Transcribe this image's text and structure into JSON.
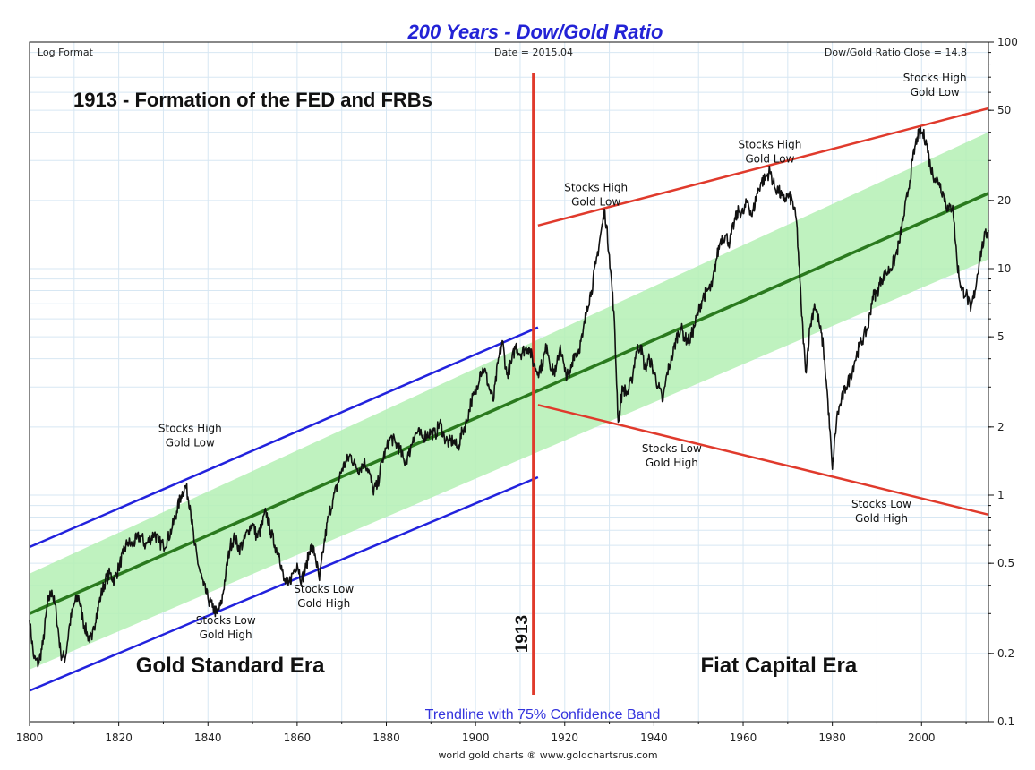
{
  "chart_data": {
    "type": "line",
    "title": "200 Years - Dow/Gold Ratio",
    "header_left": "Log Format",
    "header_center": "Date = 2015.04",
    "header_right": "Dow/Gold Ratio Close = 14.8",
    "headline": "1913 - Formation of the FED and FRBs",
    "footer_label": "Trendline with 75% Confidence Band",
    "credit": "world gold charts ® www.goldchartsrus.com",
    "yscale": "log",
    "xlim": [
      1800,
      2015
    ],
    "ylim": [
      0.1,
      100
    ],
    "x_ticks": [
      "1800",
      "1820",
      "1840",
      "1860",
      "1880",
      "1900",
      "1920",
      "1940",
      "1960",
      "1980",
      "2000"
    ],
    "x_tick_values": [
      1800,
      1820,
      1840,
      1860,
      1880,
      1900,
      1920,
      1940,
      1960,
      1980,
      2000
    ],
    "y_ticks": [
      "0.1",
      "0.2",
      "0.5",
      "1",
      "2",
      "5",
      "10",
      "20",
      "50",
      "100"
    ],
    "y_tick_values": [
      0.1,
      0.2,
      0.5,
      1,
      2,
      5,
      10,
      20,
      50,
      100
    ],
    "divider": {
      "year": 1913,
      "label": "1913"
    },
    "eras": [
      {
        "label": "Gold Standard Era",
        "x": 1845,
        "y": 0.165
      },
      {
        "label": "Fiat Capital Era",
        "x": 1968,
        "y": 0.165
      }
    ],
    "trendline": {
      "start": [
        1800,
        0.3
      ],
      "end": [
        2015,
        21.5
      ]
    },
    "confidence_band": {
      "upper": [
        [
          1800,
          0.45
        ],
        [
          2015,
          40
        ]
      ],
      "lower": [
        [
          1800,
          0.17
        ],
        [
          2015,
          11
        ]
      ]
    },
    "channels": [
      {
        "name": "gold-standard-upper",
        "color": "#2222dd",
        "start": [
          1800,
          0.59
        ],
        "end": [
          1914,
          5.5
        ]
      },
      {
        "name": "gold-standard-lower",
        "color": "#2222dd",
        "start": [
          1800,
          0.137
        ],
        "end": [
          1914,
          1.2
        ]
      },
      {
        "name": "fiat-upper",
        "color": "#e03a2c",
        "start": [
          1914,
          15.5
        ],
        "end": [
          2015,
          51
        ]
      },
      {
        "name": "fiat-lower",
        "color": "#e03a2c",
        "start": [
          1914,
          2.5
        ],
        "end": [
          2015,
          0.82
        ]
      }
    ],
    "annotations": [
      {
        "lines": [
          "Stocks High",
          "Gold Low"
        ],
        "x": 1836,
        "y": 1.9
      },
      {
        "lines": [
          "Stocks Low",
          "Gold High"
        ],
        "x": 1844,
        "y": 0.27
      },
      {
        "lines": [
          "Stocks Low",
          "Gold High"
        ],
        "x": 1866,
        "y": 0.37
      },
      {
        "lines": [
          "Stocks High",
          "Gold Low"
        ],
        "x": 1927,
        "y": 22
      },
      {
        "lines": [
          "Stocks High",
          "Gold Low"
        ],
        "x": 1966,
        "y": 34
      },
      {
        "lines": [
          "Stocks High",
          "Gold Low"
        ],
        "x": 2003,
        "y": 67
      },
      {
        "lines": [
          "Stocks Low",
          "Gold High"
        ],
        "x": 1944,
        "y": 1.55
      },
      {
        "lines": [
          "Stocks Low",
          "Gold High"
        ],
        "x": 1991,
        "y": 0.88
      }
    ],
    "series": [
      {
        "name": "Dow/Gold Ratio",
        "color": "#111111",
        "points": [
          [
            1800,
            0.28
          ],
          [
            1801,
            0.19
          ],
          [
            1802,
            0.18
          ],
          [
            1803,
            0.22
          ],
          [
            1804,
            0.33
          ],
          [
            1805,
            0.38
          ],
          [
            1806,
            0.3
          ],
          [
            1807,
            0.2
          ],
          [
            1808,
            0.19
          ],
          [
            1809,
            0.27
          ],
          [
            1810,
            0.33
          ],
          [
            1811,
            0.36
          ],
          [
            1812,
            0.28
          ],
          [
            1813,
            0.24
          ],
          [
            1814,
            0.23
          ],
          [
            1815,
            0.3
          ],
          [
            1816,
            0.36
          ],
          [
            1817,
            0.42
          ],
          [
            1818,
            0.45
          ],
          [
            1819,
            0.42
          ],
          [
            1820,
            0.48
          ],
          [
            1821,
            0.55
          ],
          [
            1822,
            0.62
          ],
          [
            1823,
            0.6
          ],
          [
            1824,
            0.64
          ],
          [
            1825,
            0.66
          ],
          [
            1826,
            0.6
          ],
          [
            1827,
            0.64
          ],
          [
            1828,
            0.68
          ],
          [
            1829,
            0.62
          ],
          [
            1830,
            0.6
          ],
          [
            1831,
            0.64
          ],
          [
            1832,
            0.72
          ],
          [
            1833,
            0.85
          ],
          [
            1834,
            1.0
          ],
          [
            1835,
            1.1
          ],
          [
            1836,
            0.9
          ],
          [
            1837,
            0.6
          ],
          [
            1838,
            0.48
          ],
          [
            1839,
            0.4
          ],
          [
            1840,
            0.35
          ],
          [
            1841,
            0.32
          ],
          [
            1842,
            0.3
          ],
          [
            1843,
            0.33
          ],
          [
            1844,
            0.45
          ],
          [
            1845,
            0.6
          ],
          [
            1846,
            0.65
          ],
          [
            1847,
            0.58
          ],
          [
            1848,
            0.62
          ],
          [
            1849,
            0.7
          ],
          [
            1850,
            0.75
          ],
          [
            1851,
            0.65
          ],
          [
            1852,
            0.72
          ],
          [
            1853,
            0.85
          ],
          [
            1854,
            0.7
          ],
          [
            1855,
            0.6
          ],
          [
            1856,
            0.55
          ],
          [
            1857,
            0.42
          ],
          [
            1858,
            0.4
          ],
          [
            1859,
            0.45
          ],
          [
            1860,
            0.5
          ],
          [
            1861,
            0.42
          ],
          [
            1862,
            0.48
          ],
          [
            1863,
            0.6
          ],
          [
            1864,
            0.55
          ],
          [
            1865,
            0.42
          ],
          [
            1866,
            0.6
          ],
          [
            1867,
            0.8
          ],
          [
            1868,
            0.95
          ],
          [
            1869,
            1.1
          ],
          [
            1870,
            1.3
          ],
          [
            1871,
            1.4
          ],
          [
            1872,
            1.5
          ],
          [
            1873,
            1.35
          ],
          [
            1874,
            1.3
          ],
          [
            1875,
            1.4
          ],
          [
            1876,
            1.3
          ],
          [
            1877,
            1.05
          ],
          [
            1878,
            1.1
          ],
          [
            1879,
            1.4
          ],
          [
            1880,
            1.6
          ],
          [
            1881,
            1.8
          ],
          [
            1882,
            1.7
          ],
          [
            1883,
            1.6
          ],
          [
            1884,
            1.4
          ],
          [
            1885,
            1.5
          ],
          [
            1886,
            1.8
          ],
          [
            1887,
            1.9
          ],
          [
            1888,
            1.8
          ],
          [
            1889,
            1.85
          ],
          [
            1890,
            1.9
          ],
          [
            1891,
            1.85
          ],
          [
            1892,
            2.1
          ],
          [
            1893,
            1.8
          ],
          [
            1894,
            1.7
          ],
          [
            1895,
            1.75
          ],
          [
            1896,
            1.6
          ],
          [
            1897,
            1.9
          ],
          [
            1898,
            2.1
          ],
          [
            1899,
            2.6
          ],
          [
            1900,
            2.8
          ],
          [
            1901,
            3.5
          ],
          [
            1902,
            3.6
          ],
          [
            1903,
            3.0
          ],
          [
            1904,
            2.6
          ],
          [
            1905,
            3.8
          ],
          [
            1906,
            4.8
          ],
          [
            1907,
            3.4
          ],
          [
            1908,
            3.8
          ],
          [
            1909,
            4.6
          ],
          [
            1910,
            4.2
          ],
          [
            1911,
            4.4
          ],
          [
            1912,
            4.5
          ],
          [
            1913,
            3.8
          ],
          [
            1914,
            3.5
          ],
          [
            1915,
            3.8
          ],
          [
            1916,
            4.6
          ],
          [
            1917,
            3.6
          ],
          [
            1918,
            3.5
          ],
          [
            1919,
            4.6
          ],
          [
            1920,
            3.5
          ],
          [
            1921,
            3.3
          ],
          [
            1922,
            4.2
          ],
          [
            1923,
            4.3
          ],
          [
            1924,
            5.0
          ],
          [
            1925,
            6.8
          ],
          [
            1926,
            8.0
          ],
          [
            1927,
            10.5
          ],
          [
            1928,
            14.0
          ],
          [
            1929,
            18.0
          ],
          [
            1930,
            11.5
          ],
          [
            1931,
            6.5
          ],
          [
            1932,
            2.1
          ],
          [
            1933,
            3.0
          ],
          [
            1934,
            2.8
          ],
          [
            1935,
            3.2
          ],
          [
            1936,
            4.3
          ],
          [
            1937,
            4.6
          ],
          [
            1938,
            3.6
          ],
          [
            1939,
            4.0
          ],
          [
            1940,
            3.5
          ],
          [
            1941,
            3.0
          ],
          [
            1942,
            2.6
          ],
          [
            1943,
            3.5
          ],
          [
            1944,
            4.0
          ],
          [
            1945,
            4.9
          ],
          [
            1946,
            5.5
          ],
          [
            1947,
            4.9
          ],
          [
            1948,
            4.8
          ],
          [
            1949,
            5.5
          ],
          [
            1950,
            6.5
          ],
          [
            1951,
            7.5
          ],
          [
            1952,
            8.0
          ],
          [
            1953,
            8.3
          ],
          [
            1954,
            11.0
          ],
          [
            1955,
            13.5
          ],
          [
            1956,
            14.0
          ],
          [
            1957,
            13.0
          ],
          [
            1958,
            16.0
          ],
          [
            1959,
            18.0
          ],
          [
            1960,
            17.5
          ],
          [
            1961,
            20.0
          ],
          [
            1962,
            17.0
          ],
          [
            1963,
            21.0
          ],
          [
            1964,
            24.0
          ],
          [
            1965,
            25.0
          ],
          [
            1966,
            27.0
          ],
          [
            1967,
            23.0
          ],
          [
            1968,
            22.0
          ],
          [
            1969,
            20.0
          ],
          [
            1970,
            21.0
          ],
          [
            1971,
            20.0
          ],
          [
            1972,
            16.0
          ],
          [
            1973,
            7.0
          ],
          [
            1974,
            3.5
          ],
          [
            1975,
            5.5
          ],
          [
            1976,
            7.0
          ],
          [
            1977,
            5.8
          ],
          [
            1978,
            4.5
          ],
          [
            1979,
            2.6
          ],
          [
            1980,
            1.3
          ],
          [
            1981,
            2.2
          ],
          [
            1982,
            2.6
          ],
          [
            1983,
            3.0
          ],
          [
            1984,
            3.3
          ],
          [
            1985,
            3.9
          ],
          [
            1986,
            4.5
          ],
          [
            1987,
            5.0
          ],
          [
            1988,
            5.5
          ],
          [
            1989,
            7.5
          ],
          [
            1990,
            7.8
          ],
          [
            1991,
            9.0
          ],
          [
            1992,
            9.5
          ],
          [
            1993,
            10.0
          ],
          [
            1994,
            11.0
          ],
          [
            1995,
            13.0
          ],
          [
            1996,
            17.0
          ],
          [
            1997,
            22.0
          ],
          [
            1998,
            30.0
          ],
          [
            1999,
            38.0
          ],
          [
            2000,
            40.0
          ],
          [
            2001,
            37.0
          ],
          [
            2002,
            28.0
          ],
          [
            2003,
            25.0
          ],
          [
            2004,
            24.0
          ],
          [
            2005,
            21.0
          ],
          [
            2006,
            18.0
          ],
          [
            2007,
            19.0
          ],
          [
            2008,
            10.5
          ],
          [
            2009,
            8.0
          ],
          [
            2010,
            7.8
          ],
          [
            2011,
            6.5
          ],
          [
            2012,
            8.0
          ],
          [
            2013,
            11.0
          ],
          [
            2014,
            13.5
          ],
          [
            2015,
            14.8
          ]
        ]
      }
    ]
  }
}
